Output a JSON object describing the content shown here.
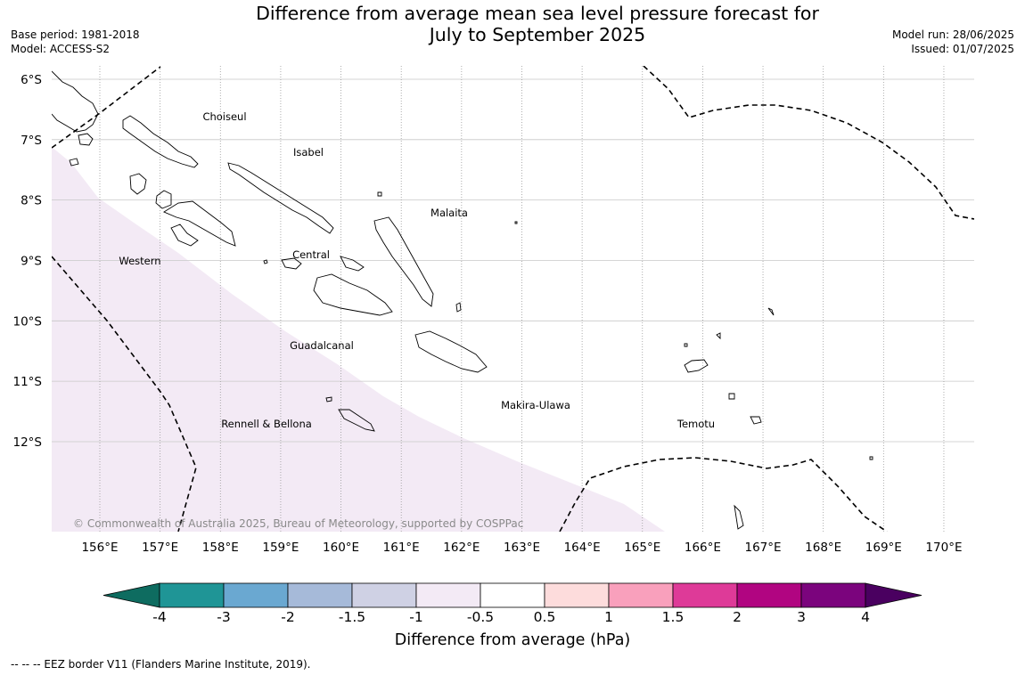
{
  "title": {
    "line1": "Difference from average mean sea level pressure forecast for",
    "line2": "July to September 2025"
  },
  "meta_left": {
    "base_period": "Base period: 1981-2018",
    "model": "Model: ACCESS-S2"
  },
  "meta_right": {
    "model_run": "Model run: 28/06/2025",
    "issued": "Issued: 01/07/2025"
  },
  "map": {
    "lat_labels": [
      "6°S",
      "7°S",
      "8°S",
      "9°S",
      "10°S",
      "11°S",
      "12°S"
    ],
    "lon_labels": [
      "156°E",
      "157°E",
      "158°E",
      "159°E",
      "160°E",
      "161°E",
      "162°E",
      "163°E",
      "164°E",
      "165°E",
      "166°E",
      "167°E",
      "168°E",
      "169°E",
      "170°E"
    ],
    "provinces": [
      "Choiseul",
      "Isabel",
      "Malaita",
      "Western",
      "Central",
      "Guadalcanal",
      "Makira-Ulawa",
      "Rennell & Bellona",
      "Temotu"
    ],
    "copyright": "© Commonwealth of Australia 2025, Bureau of Meteorology, supported by COSPPac",
    "anomaly_region_color": "#f3eaf5",
    "eez_line_color": "#000000",
    "coastline_color": "#000000"
  },
  "colorbar": {
    "label": "Difference from average (hPa)",
    "ticks": [
      "-4",
      "-3",
      "-2",
      "-1.5",
      "-1",
      "-0.5",
      "0.5",
      "1",
      "1.5",
      "2",
      "3",
      "4"
    ],
    "colors": [
      "#0e6c60",
      "#1f9596",
      "#6aa8d1",
      "#a6bad9",
      "#cfd1e4",
      "#f3eaf5",
      "#ffffff",
      "#fddcdc",
      "#f9a0bc",
      "#de3a98",
      "#b10581",
      "#7b047d",
      "#4a0060"
    ]
  },
  "footer": {
    "eez_legend": "--  --  -- EEZ border V11 (Flanders Marine Institute, 2019)."
  }
}
